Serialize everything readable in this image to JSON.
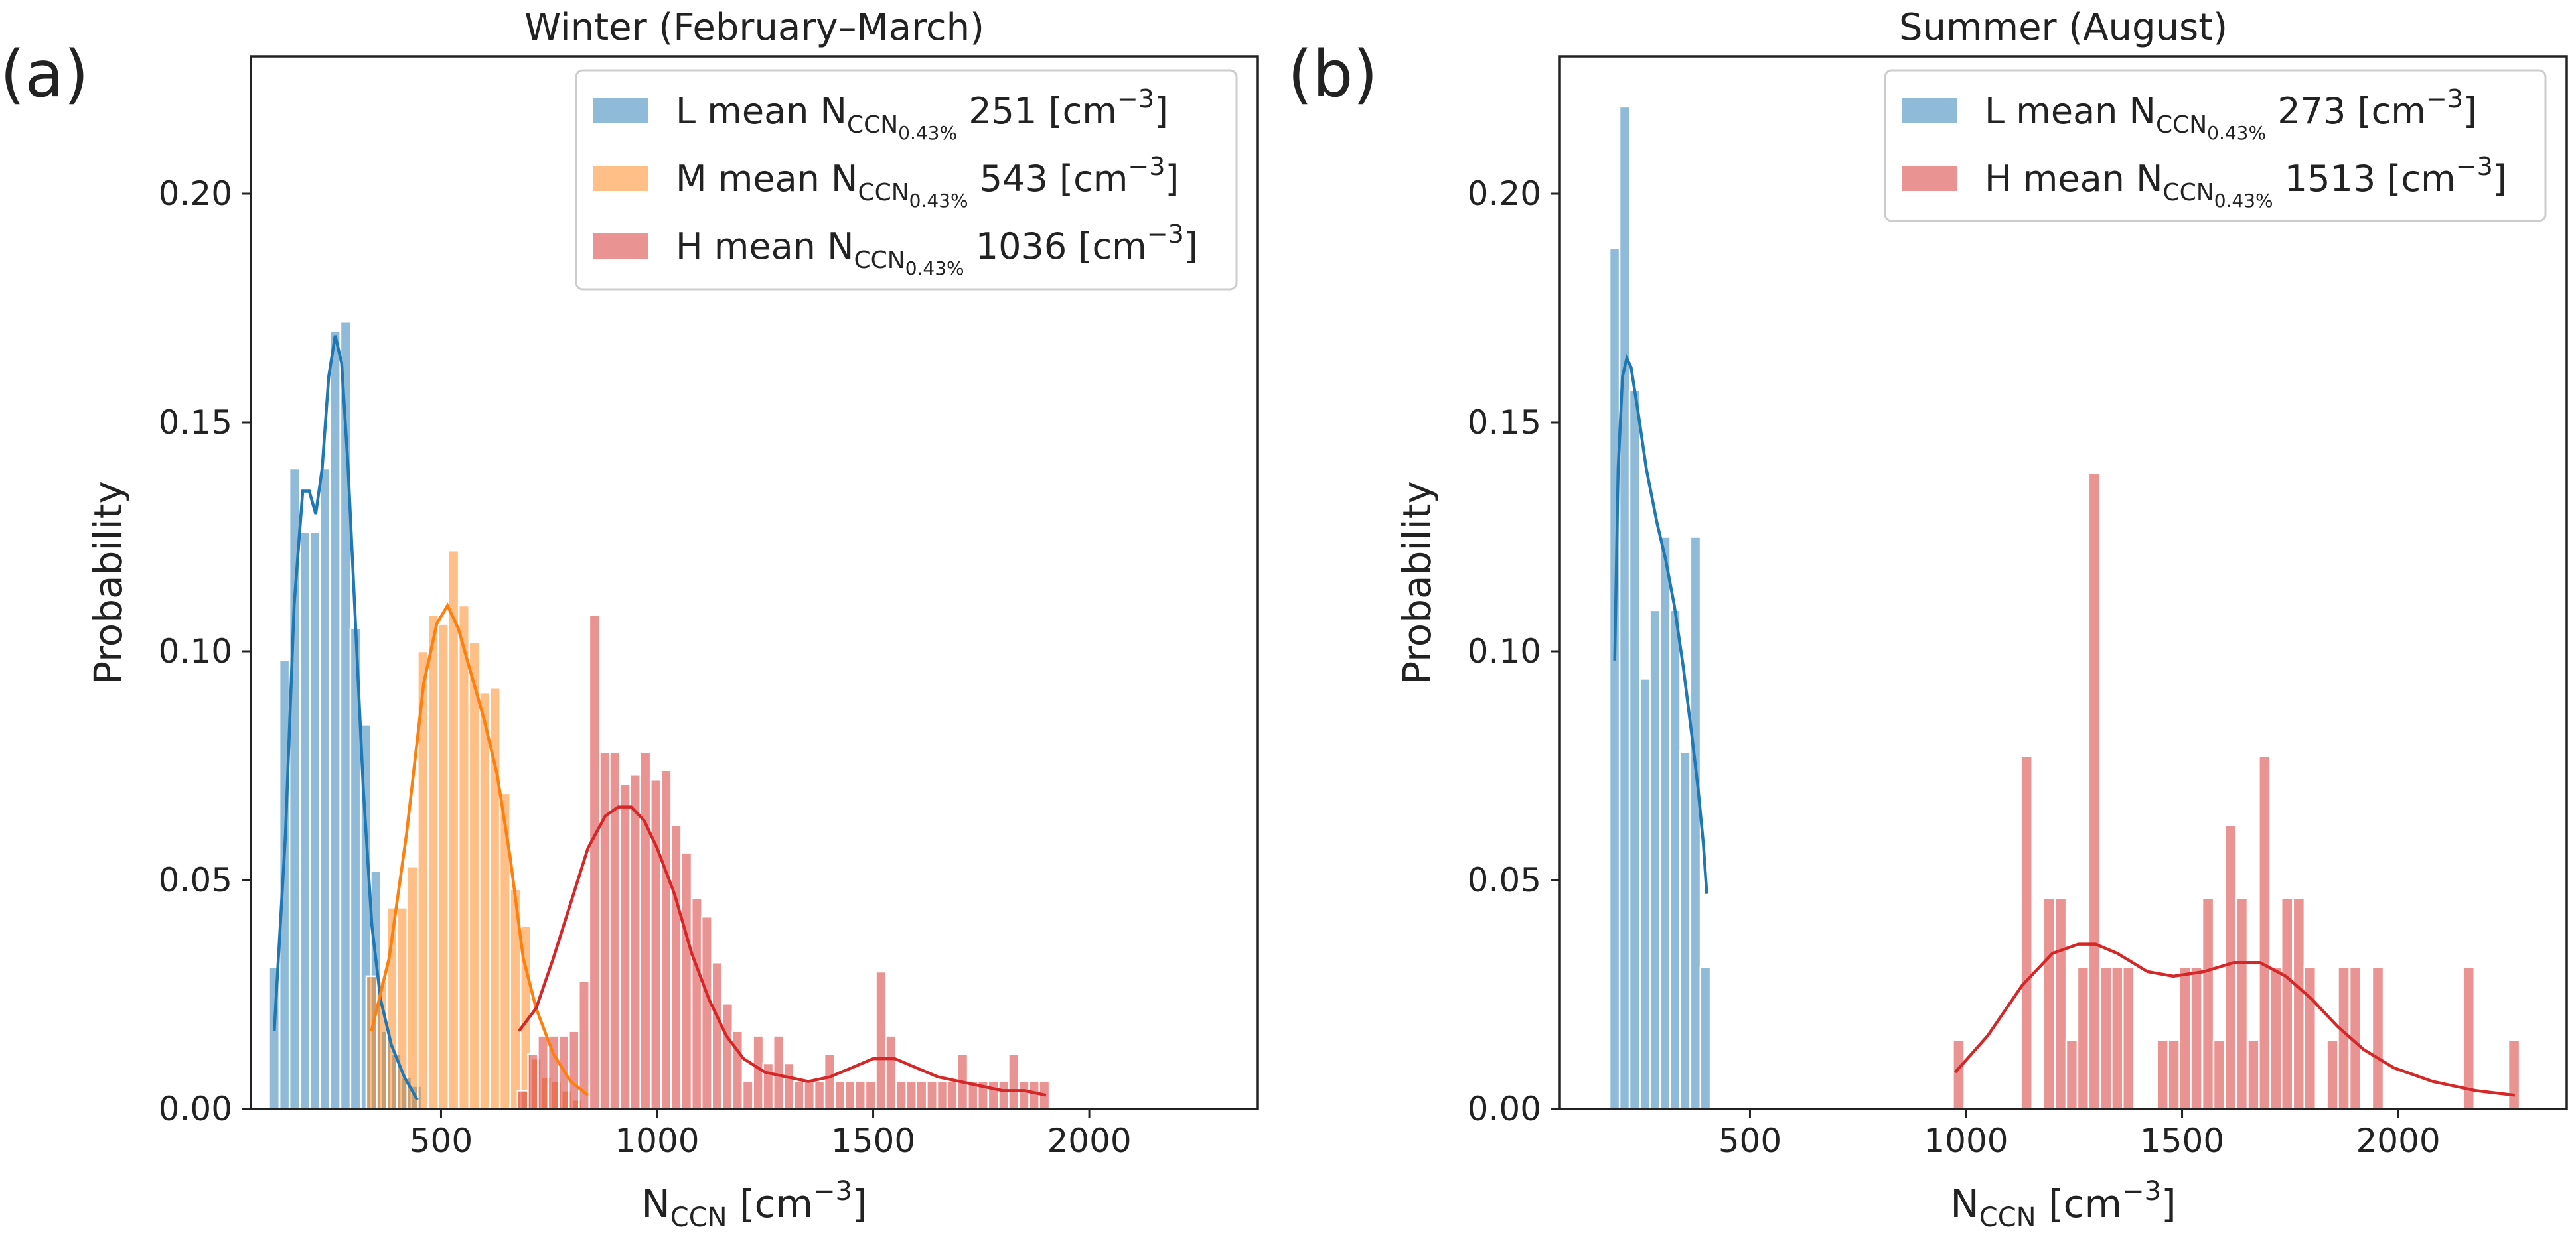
{
  "chart_data": [
    {
      "panel_label": "(a)",
      "title": "Winter (February–March)",
      "type": "histogram",
      "xlabel": "N_CCN [cm^-3]",
      "ylabel": "Probability",
      "xlim": [
        60,
        2390
      ],
      "ylim": [
        0,
        0.23
      ],
      "xticks": [
        "500",
        "1000",
        "1500",
        "2000"
      ],
      "yticks": [
        "0.00",
        "0.05",
        "0.10",
        "0.15",
        "0.20"
      ],
      "legend_position": "upper right",
      "series": [
        {
          "name": "L mean N_CCN0.43% 251 [cm^-3]",
          "legend": {
            "prefix": "L mean N",
            "sub": "CCN",
            "subsub": "0.43%",
            "value": "251",
            "unit": "[cm",
            "exp": "−3",
            "close": "]"
          },
          "color": "#1f77b4",
          "bin_width": 23.5,
          "bins": [
            [
              114,
              0.031
            ],
            [
              138,
              0.098
            ],
            [
              161,
              0.14
            ],
            [
              185,
              0.126
            ],
            [
              208,
              0.126
            ],
            [
              232,
              0.14
            ],
            [
              255,
              0.17
            ],
            [
              279,
              0.172
            ],
            [
              302,
              0.105
            ],
            [
              326,
              0.084
            ],
            [
              349,
              0.052
            ],
            [
              373,
              0.017
            ],
            [
              396,
              0.012
            ],
            [
              420,
              0.007
            ],
            [
              443,
              0.005
            ]
          ],
          "kde": [
            [
              114,
              0.017
            ],
            [
              140,
              0.06
            ],
            [
              160,
              0.11
            ],
            [
              180,
              0.135
            ],
            [
              195,
              0.135
            ],
            [
              210,
              0.13
            ],
            [
              225,
              0.14
            ],
            [
              240,
              0.16
            ],
            [
              255,
              0.169
            ],
            [
              270,
              0.163
            ],
            [
              285,
              0.14
            ],
            [
              300,
              0.11
            ],
            [
              320,
              0.07
            ],
            [
              340,
              0.04
            ],
            [
              360,
              0.024
            ],
            [
              385,
              0.014
            ],
            [
              415,
              0.007
            ],
            [
              445,
              0.002
            ]
          ]
        },
        {
          "name": "M mean N_CCN0.43% 543 [cm^-3]",
          "legend": {
            "prefix": "M mean N",
            "sub": "CCN",
            "subsub": "0.43%",
            "value": "543",
            "unit": "[cm",
            "exp": "−3",
            "close": "]"
          },
          "color": "#ff7f0e",
          "bin_width": 23.8,
          "bins": [
            [
              339,
              0.029
            ],
            [
              363,
              0.028
            ],
            [
              387,
              0.044
            ],
            [
              410,
              0.044
            ],
            [
              434,
              0.053
            ],
            [
              458,
              0.1
            ],
            [
              482,
              0.108
            ],
            [
              506,
              0.106
            ],
            [
              529,
              0.122
            ],
            [
              553,
              0.11
            ],
            [
              577,
              0.102
            ],
            [
              601,
              0.091
            ],
            [
              625,
              0.092
            ],
            [
              648,
              0.069
            ],
            [
              672,
              0.048
            ],
            [
              696,
              0.04
            ],
            [
              720,
              0.011
            ],
            [
              744,
              0.007
            ],
            [
              767,
              0.006
            ],
            [
              791,
              0.004
            ],
            [
              815,
              0.002
            ]
          ],
          "kde": [
            [
              339,
              0.017
            ],
            [
              380,
              0.033
            ],
            [
              420,
              0.06
            ],
            [
              460,
              0.093
            ],
            [
              490,
              0.106
            ],
            [
              515,
              0.11
            ],
            [
              540,
              0.105
            ],
            [
              570,
              0.095
            ],
            [
              600,
              0.085
            ],
            [
              630,
              0.073
            ],
            [
              660,
              0.055
            ],
            [
              690,
              0.033
            ],
            [
              720,
              0.022
            ],
            [
              760,
              0.012
            ],
            [
              800,
              0.006
            ],
            [
              840,
              0.003
            ]
          ]
        },
        {
          "name": "H mean N_CCN0.43% 1036 [cm^-3]",
          "legend": {
            "prefix": "H mean N",
            "sub": "CCN",
            "subsub": "0.43%",
            "value": "1036",
            "unit": "[cm",
            "exp": "−3",
            "close": "]"
          },
          "color": "#d62728",
          "bin_width": 23.7,
          "bins": [
            [
              689,
              0.004
            ],
            [
              713,
              0.012
            ],
            [
              736,
              0.016
            ],
            [
              760,
              0.016
            ],
            [
              784,
              0.016
            ],
            [
              808,
              0.017
            ],
            [
              831,
              0.028
            ],
            [
              855,
              0.108
            ],
            [
              879,
              0.078
            ],
            [
              902,
              0.078
            ],
            [
              926,
              0.071
            ],
            [
              950,
              0.073
            ],
            [
              973,
              0.078
            ],
            [
              997,
              0.072
            ],
            [
              1021,
              0.074
            ],
            [
              1044,
              0.062
            ],
            [
              1068,
              0.056
            ],
            [
              1092,
              0.046
            ],
            [
              1115,
              0.042
            ],
            [
              1139,
              0.032
            ],
            [
              1163,
              0.023
            ],
            [
              1186,
              0.017
            ],
            [
              1210,
              0.006
            ],
            [
              1234,
              0.016
            ],
            [
              1257,
              0.01
            ],
            [
              1281,
              0.016
            ],
            [
              1305,
              0.01
            ],
            [
              1328,
              0.006
            ],
            [
              1352,
              0.006
            ],
            [
              1376,
              0.006
            ],
            [
              1399,
              0.012
            ],
            [
              1423,
              0.006
            ],
            [
              1447,
              0.006
            ],
            [
              1470,
              0.006
            ],
            [
              1494,
              0.006
            ],
            [
              1518,
              0.03
            ],
            [
              1541,
              0.016
            ],
            [
              1565,
              0.006
            ],
            [
              1589,
              0.006
            ],
            [
              1612,
              0.006
            ],
            [
              1636,
              0.006
            ],
            [
              1660,
              0.006
            ],
            [
              1683,
              0.006
            ],
            [
              1707,
              0.012
            ],
            [
              1731,
              0.006
            ],
            [
              1754,
              0.006
            ],
            [
              1778,
              0.006
            ],
            [
              1802,
              0.006
            ],
            [
              1825,
              0.012
            ],
            [
              1849,
              0.006
            ],
            [
              1873,
              0.006
            ],
            [
              1896,
              0.006
            ]
          ],
          "kde": [
            [
              680,
              0.017
            ],
            [
              720,
              0.022
            ],
            [
              760,
              0.033
            ],
            [
              800,
              0.045
            ],
            [
              840,
              0.057
            ],
            [
              880,
              0.064
            ],
            [
              910,
              0.066
            ],
            [
              940,
              0.066
            ],
            [
              970,
              0.063
            ],
            [
              1000,
              0.057
            ],
            [
              1040,
              0.047
            ],
            [
              1080,
              0.034
            ],
            [
              1120,
              0.024
            ],
            [
              1160,
              0.016
            ],
            [
              1200,
              0.011
            ],
            [
              1250,
              0.008
            ],
            [
              1300,
              0.007
            ],
            [
              1350,
              0.006
            ],
            [
              1400,
              0.007
            ],
            [
              1450,
              0.009
            ],
            [
              1500,
              0.011
            ],
            [
              1550,
              0.011
            ],
            [
              1600,
              0.009
            ],
            [
              1650,
              0.007
            ],
            [
              1700,
              0.006
            ],
            [
              1750,
              0.005
            ],
            [
              1800,
              0.004
            ],
            [
              1850,
              0.004
            ],
            [
              1900,
              0.003
            ]
          ]
        }
      ]
    },
    {
      "panel_label": "(b)",
      "title": "Summer (August)",
      "type": "histogram",
      "xlabel": "N_CCN [cm^-3]",
      "ylabel": "Probability",
      "xlim": [
        60,
        2390
      ],
      "ylim": [
        0,
        0.23
      ],
      "xticks": [
        "500",
        "1000",
        "1500",
        "2000"
      ],
      "yticks": [
        "0.00",
        "0.05",
        "0.10",
        "0.15",
        "0.20"
      ],
      "legend_position": "upper right",
      "series": [
        {
          "name": "L mean N_CCN0.43% 273 [cm^-3]",
          "legend": {
            "prefix": "L mean N",
            "sub": "CCN",
            "subsub": "0.43%",
            "value": "273",
            "unit": "[cm",
            "exp": "−3",
            "close": "]"
          },
          "color": "#1f77b4",
          "bin_width": 23.4,
          "bins": [
            [
              187,
              0.188
            ],
            [
              210,
              0.219
            ],
            [
              233,
              0.157
            ],
            [
              257,
              0.094
            ],
            [
              280,
              0.109
            ],
            [
              304,
              0.125
            ],
            [
              327,
              0.109
            ],
            [
              350,
              0.078
            ],
            [
              374,
              0.125
            ],
            [
              397,
              0.031
            ]
          ],
          "kde": [
            [
              187,
              0.098
            ],
            [
              195,
              0.14
            ],
            [
              205,
              0.16
            ],
            [
              215,
              0.164
            ],
            [
              225,
              0.162
            ],
            [
              240,
              0.153
            ],
            [
              260,
              0.14
            ],
            [
              285,
              0.128
            ],
            [
              305,
              0.12
            ],
            [
              325,
              0.11
            ],
            [
              345,
              0.097
            ],
            [
              365,
              0.082
            ],
            [
              380,
              0.07
            ],
            [
              392,
              0.058
            ],
            [
              400,
              0.047
            ]
          ]
        },
        {
          "name": "H mean N_CCN0.43% 1513 [cm^-3]",
          "legend": {
            "prefix": "H mean N",
            "sub": "CCN",
            "subsub": "0.43%",
            "value": "1513",
            "unit": "[cm",
            "exp": "−3",
            "close": "]"
          },
          "color": "#d62728",
          "bin_width": 26.2,
          "bins": [
            [
              983,
              0.015
            ],
            [
              1140,
              0.077
            ],
            [
              1192,
              0.046
            ],
            [
              1219,
              0.046
            ],
            [
              1245,
              0.015
            ],
            [
              1271,
              0.031
            ],
            [
              1297,
              0.139
            ],
            [
              1324,
              0.031
            ],
            [
              1350,
              0.031
            ],
            [
              1376,
              0.031
            ],
            [
              1455,
              0.015
            ],
            [
              1481,
              0.015
            ],
            [
              1507,
              0.031
            ],
            [
              1533,
              0.031
            ],
            [
              1560,
              0.046
            ],
            [
              1586,
              0.015
            ],
            [
              1612,
              0.062
            ],
            [
              1638,
              0.046
            ],
            [
              1665,
              0.015
            ],
            [
              1691,
              0.077
            ],
            [
              1717,
              0.031
            ],
            [
              1743,
              0.046
            ],
            [
              1770,
              0.046
            ],
            [
              1796,
              0.031
            ],
            [
              1848,
              0.015
            ],
            [
              1874,
              0.031
            ],
            [
              1901,
              0.031
            ],
            [
              1953,
              0.031
            ],
            [
              2163,
              0.031
            ],
            [
              2268,
              0.015
            ]
          ],
          "kde": [
            [
              975,
              0.008
            ],
            [
              1050,
              0.016
            ],
            [
              1130,
              0.027
            ],
            [
              1200,
              0.034
            ],
            [
              1260,
              0.036
            ],
            [
              1300,
              0.036
            ],
            [
              1350,
              0.034
            ],
            [
              1420,
              0.03
            ],
            [
              1480,
              0.029
            ],
            [
              1550,
              0.03
            ],
            [
              1620,
              0.032
            ],
            [
              1680,
              0.032
            ],
            [
              1740,
              0.029
            ],
            [
              1800,
              0.024
            ],
            [
              1860,
              0.018
            ],
            [
              1920,
              0.013
            ],
            [
              1990,
              0.009
            ],
            [
              2080,
              0.006
            ],
            [
              2180,
              0.004
            ],
            [
              2270,
              0.003
            ]
          ]
        }
      ]
    }
  ]
}
